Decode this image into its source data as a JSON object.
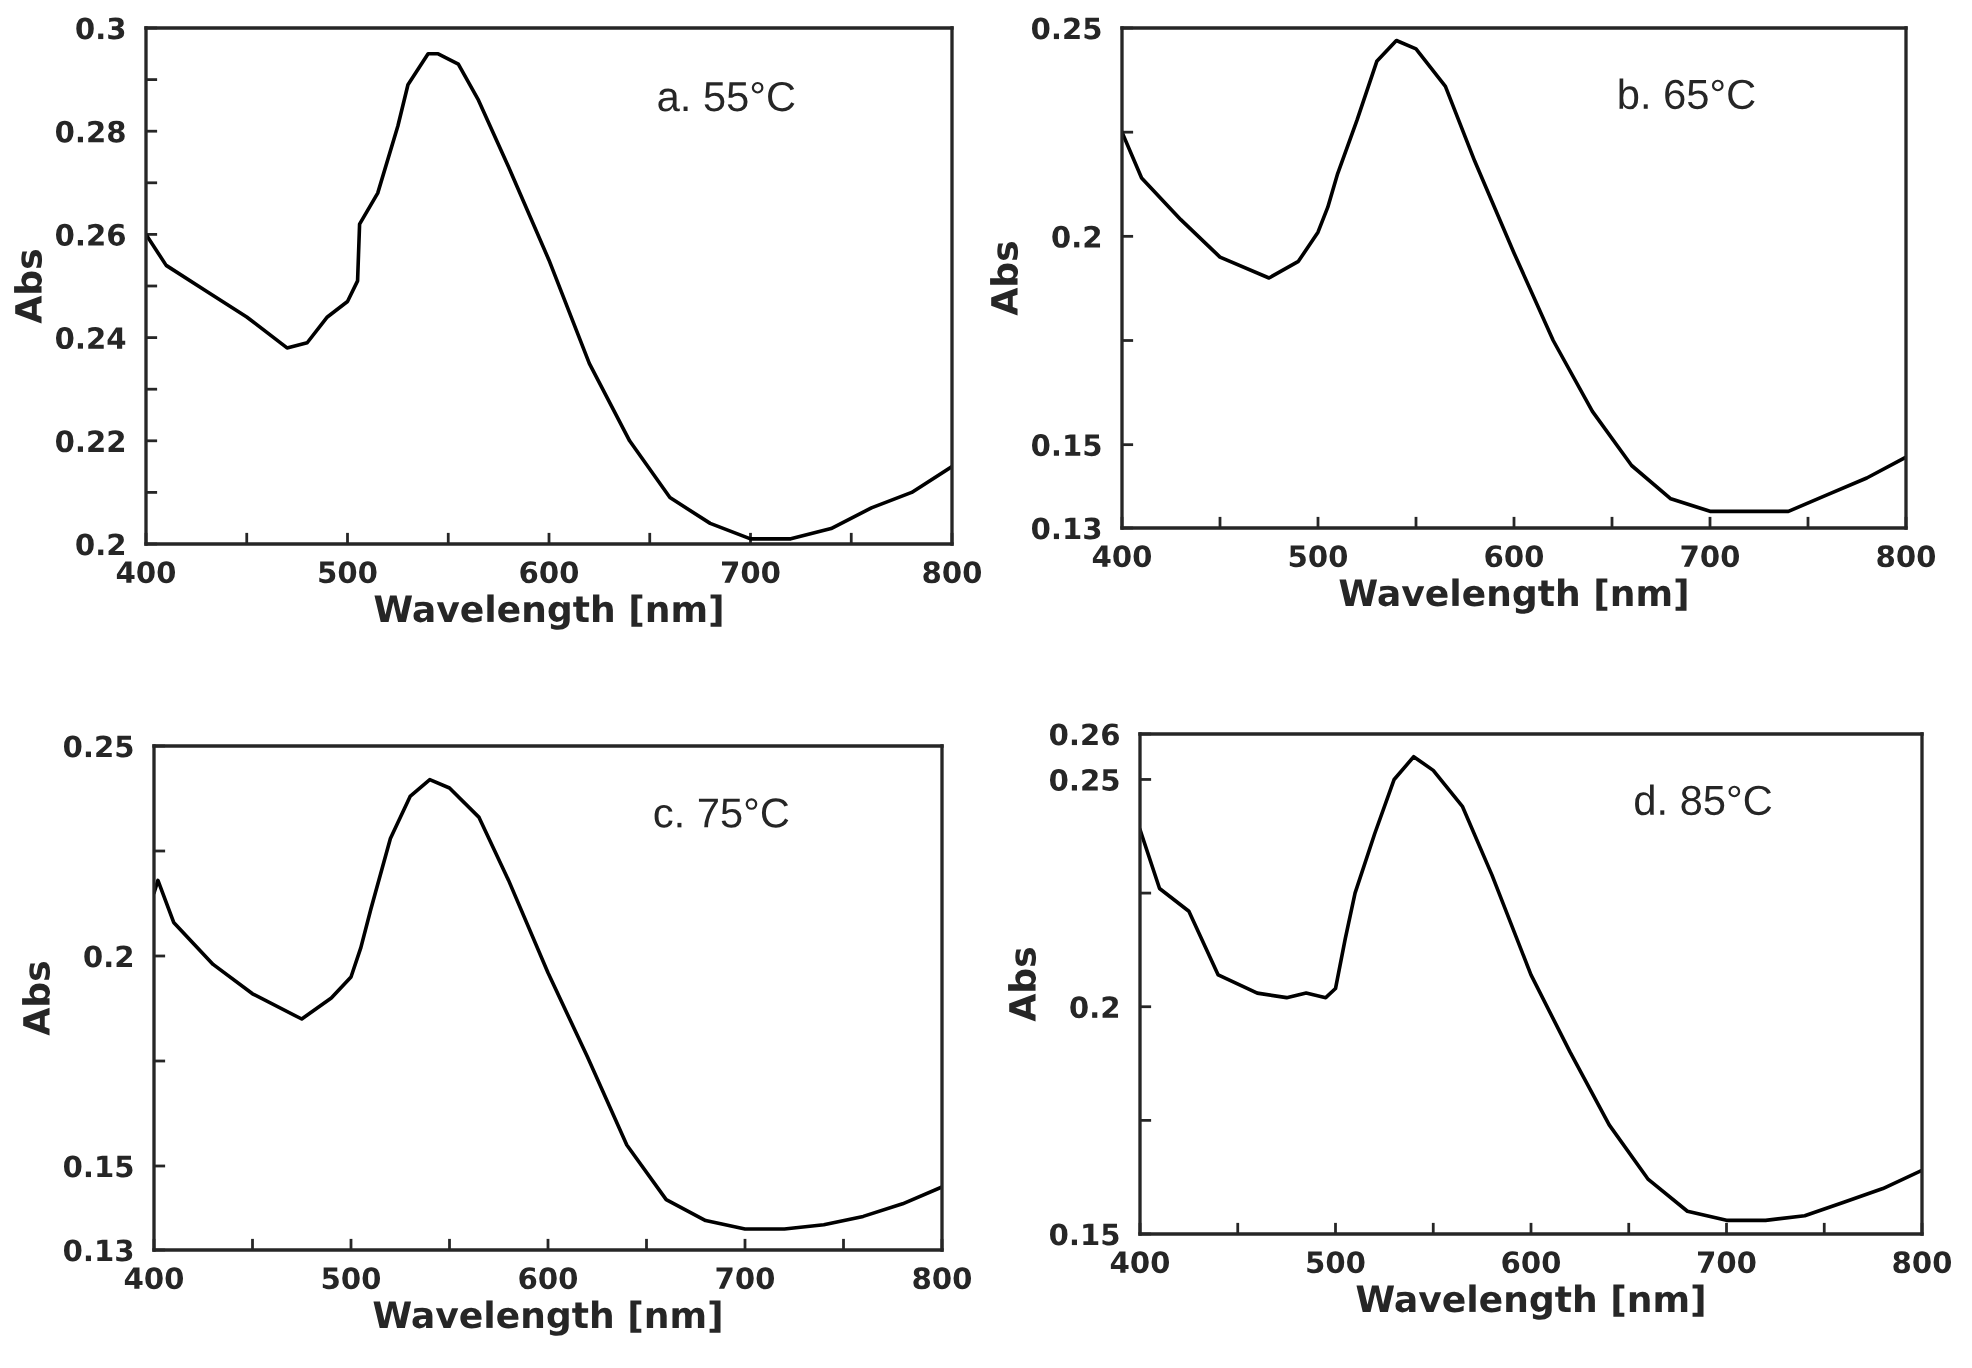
{
  "chart_data": [
    {
      "type": "line",
      "xlabel": "Wavelength [nm]",
      "ylabel": "Abs",
      "annotations": [
        "a. 55°C"
      ],
      "xlim": [
        400,
        800
      ],
      "ylim": [
        0.2,
        0.3
      ],
      "xticks": [
        400,
        {
          "value": 450,
          "label": null
        },
        500,
        {
          "value": 550,
          "label": null
        },
        600,
        {
          "value": 650,
          "label": null
        },
        700,
        {
          "value": 750,
          "label": null
        },
        800
      ],
      "yticks": [
        0.2,
        {
          "value": 0.21,
          "label": null
        },
        0.22,
        {
          "value": 0.23,
          "label": null
        },
        0.24,
        {
          "value": 0.25,
          "label": null
        },
        0.26,
        {
          "value": 0.27,
          "label": null
        },
        0.28,
        {
          "value": 0.29,
          "label": null
        },
        0.3
      ],
      "legend": false,
      "grid": false,
      "marker": "none",
      "line_style": "solid",
      "series": [
        {
          "color": "#000000",
          "x": [
            400,
            410,
            430,
            450,
            470,
            480,
            490,
            500,
            505,
            506,
            515,
            525,
            530,
            540,
            545,
            555,
            565,
            580,
            600,
            620,
            640,
            660,
            680,
            700,
            720,
            740,
            760,
            780,
            800
          ],
          "values": [
            0.26,
            0.254,
            0.249,
            0.244,
            0.238,
            0.239,
            0.244,
            0.247,
            0.251,
            0.262,
            0.268,
            0.281,
            0.289,
            0.295,
            0.295,
            0.293,
            0.286,
            0.273,
            0.255,
            0.235,
            0.22,
            0.209,
            0.204,
            0.201,
            0.201,
            0.203,
            0.207,
            0.21,
            0.215
          ]
        }
      ]
    },
    {
      "type": "line",
      "xlabel": "Wavelength [nm]",
      "ylabel": "Abs",
      "annotations": [
        "b. 65°C"
      ],
      "xlim": [
        400,
        800
      ],
      "ylim": [
        0.13,
        0.25
      ],
      "xticks": [
        400,
        {
          "value": 450,
          "label": null
        },
        500,
        {
          "value": 550,
          "label": null
        },
        600,
        {
          "value": 650,
          "label": null
        },
        700,
        {
          "value": 750,
          "label": null
        },
        800
      ],
      "yticks": [
        0.13,
        0.15,
        {
          "value": 0.175,
          "label": null
        },
        0.2,
        {
          "value": 0.225,
          "label": null
        },
        0.25
      ],
      "legend": false,
      "grid": false,
      "marker": "none",
      "line_style": "solid",
      "series": [
        {
          "color": "#000000",
          "x": [
            400,
            410,
            430,
            450,
            475,
            490,
            500,
            505,
            510,
            520,
            530,
            540,
            550,
            565,
            580,
            600,
            620,
            640,
            660,
            680,
            700,
            720,
            740,
            760,
            780,
            800
          ],
          "values": [
            0.225,
            0.214,
            0.204,
            0.195,
            0.19,
            0.194,
            0.201,
            0.207,
            0.215,
            0.228,
            0.242,
            0.247,
            0.245,
            0.236,
            0.218,
            0.196,
            0.175,
            0.158,
            0.145,
            0.137,
            0.134,
            0.134,
            0.134,
            0.138,
            0.142,
            0.147
          ]
        }
      ]
    },
    {
      "type": "line",
      "xlabel": "Wavelength [nm]",
      "ylabel": "Abs",
      "annotations": [
        "c. 75°C"
      ],
      "xlim": [
        400,
        800
      ],
      "ylim": [
        0.13,
        0.25
      ],
      "xticks": [
        400,
        {
          "value": 450,
          "label": null
        },
        500,
        {
          "value": 550,
          "label": null
        },
        600,
        {
          "value": 650,
          "label": null
        },
        700,
        {
          "value": 750,
          "label": null
        },
        800
      ],
      "yticks": [
        0.13,
        0.15,
        {
          "value": 0.175,
          "label": null
        },
        0.2,
        {
          "value": 0.225,
          "label": null
        },
        0.25
      ],
      "legend": false,
      "grid": false,
      "marker": "none",
      "line_style": "solid",
      "series": [
        {
          "color": "#000000",
          "x": [
            400,
            402,
            410,
            430,
            450,
            475,
            490,
            500,
            505,
            510,
            520,
            530,
            540,
            550,
            565,
            580,
            600,
            620,
            640,
            660,
            680,
            700,
            720,
            740,
            760,
            780,
            800
          ],
          "values": [
            0.215,
            0.218,
            0.208,
            0.198,
            0.191,
            0.185,
            0.19,
            0.195,
            0.202,
            0.211,
            0.228,
            0.238,
            0.242,
            0.24,
            0.233,
            0.218,
            0.196,
            0.176,
            0.155,
            0.142,
            0.137,
            0.135,
            0.135,
            0.136,
            0.138,
            0.141,
            0.145
          ]
        }
      ]
    },
    {
      "type": "line",
      "xlabel": "Wavelength [nm]",
      "ylabel": "Abs",
      "annotations": [
        "d. 85°C"
      ],
      "xlim": [
        400,
        800
      ],
      "ylim": [
        0.15,
        0.26
      ],
      "xticks": [
        400,
        {
          "value": 450,
          "label": null
        },
        500,
        {
          "value": 550,
          "label": null
        },
        600,
        {
          "value": 650,
          "label": null
        },
        700,
        {
          "value": 750,
          "label": null
        },
        800
      ],
      "yticks": [
        0.15,
        {
          "value": 0.175,
          "label": null
        },
        0.2,
        {
          "value": 0.225,
          "label": null
        },
        0.25,
        0.26
      ],
      "legend": false,
      "grid": false,
      "marker": "none",
      "line_style": "solid",
      "series": [
        {
          "color": "#000000",
          "x": [
            400,
            410,
            425,
            440,
            460,
            475,
            485,
            495,
            500,
            505,
            510,
            520,
            530,
            540,
            550,
            565,
            580,
            600,
            620,
            640,
            660,
            680,
            700,
            720,
            740,
            760,
            780,
            800
          ],
          "values": [
            0.239,
            0.226,
            0.221,
            0.207,
            0.203,
            0.202,
            0.203,
            0.202,
            0.204,
            0.215,
            0.225,
            0.238,
            0.25,
            0.255,
            0.252,
            0.244,
            0.229,
            0.207,
            0.19,
            0.174,
            0.162,
            0.155,
            0.153,
            0.153,
            0.154,
            0.157,
            0.16,
            0.164
          ]
        }
      ]
    }
  ]
}
